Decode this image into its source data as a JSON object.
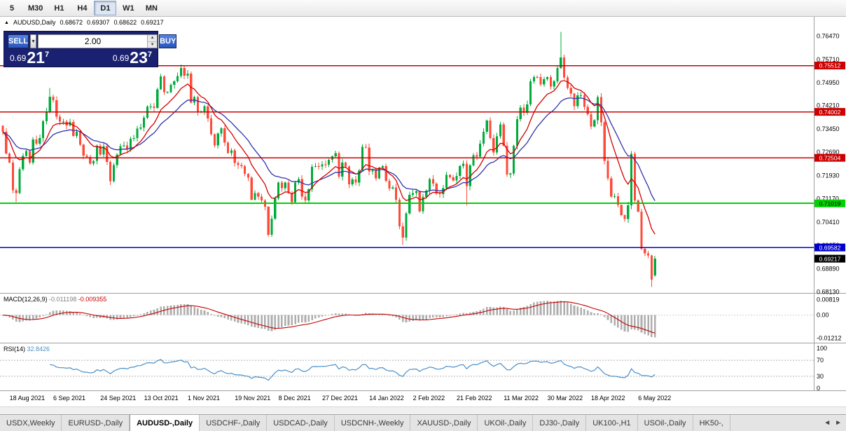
{
  "toolbar": {
    "timeframes": [
      {
        "label": "5",
        "active": false
      },
      {
        "label": "M30",
        "active": false
      },
      {
        "label": "H1",
        "active": false
      },
      {
        "label": "H4",
        "active": false
      },
      {
        "label": "D1",
        "active": true
      },
      {
        "label": "W1",
        "active": false
      },
      {
        "label": "MN",
        "active": false
      }
    ]
  },
  "ohlc_header": {
    "marker": "▲",
    "title": "AUDUSD,Daily",
    "open": "0.68672",
    "high": "0.69307",
    "low": "0.68622",
    "close": "0.69217"
  },
  "trade_panel": {
    "sell_label": "SELL",
    "buy_label": "BUY",
    "volume": "2.00",
    "dropdown_icon": "▼",
    "spinner_up": "▲",
    "spinner_down": "▼",
    "sell_price": {
      "prefix": "0.69",
      "big": "21",
      "sup": "7"
    },
    "buy_price": {
      "prefix": "0.69",
      "big": "23",
      "sup": "7"
    }
  },
  "chart_data": {
    "type": "candlestick",
    "symbol": "AUDUSD",
    "timeframe": "Daily",
    "y_range": {
      "top": 0.771,
      "bottom": 0.681
    },
    "price_axis_labels": [
      "0.76470",
      "0.75710",
      "0.74950",
      "0.74210",
      "0.73450",
      "0.72690",
      "0.71930",
      "0.71170",
      "0.70410",
      "0.69650",
      "0.68890",
      "0.68130"
    ],
    "hlines": [
      {
        "price": 0.75512,
        "label": "0.75512",
        "color": "#CC0000",
        "text_color": "#FFFFFF",
        "width": 1.5
      },
      {
        "price": 0.74002,
        "label": "0.74002",
        "color": "#CC0000",
        "text_color": "#FFFFFF",
        "width": 1.5
      },
      {
        "price": 0.72504,
        "label": "0.72504",
        "color": "#CC0000",
        "text_color": "#FFFFFF",
        "width": 1.5
      },
      {
        "price": 0.71019,
        "label": "0.71019",
        "color": "#00D200",
        "text_color": "#000000",
        "width": 2
      },
      {
        "price": 0.69582,
        "label": "0.69582",
        "color": "#0000CC",
        "text_color": "#FFFFFF",
        "width": 1.5
      }
    ],
    "current_price_tag": {
      "price": 0.69217,
      "label": "0.69217",
      "color": "#000000",
      "text_color": "#FFFFFF"
    },
    "first_open": 0.7355,
    "closes": [
      0.7335,
      0.7265,
      0.7235,
      0.7145,
      0.7135,
      0.7213,
      0.7257,
      0.7272,
      0.7235,
      0.731,
      0.7297,
      0.7315,
      0.737,
      0.74,
      0.745,
      0.7438,
      0.7385,
      0.7368,
      0.7369,
      0.7356,
      0.7367,
      0.7322,
      0.7335,
      0.7293,
      0.7258,
      0.7253,
      0.7232,
      0.7241,
      0.729,
      0.7261,
      0.7288,
      0.7237,
      0.7174,
      0.7227,
      0.7261,
      0.7288,
      0.7291,
      0.7277,
      0.7312,
      0.7315,
      0.7346,
      0.7349,
      0.7381,
      0.7418,
      0.7418,
      0.7413,
      0.7474,
      0.7516,
      0.7465,
      0.7465,
      0.7488,
      0.75,
      0.7517,
      0.7543,
      0.7518,
      0.7525,
      0.743,
      0.7448,
      0.7399,
      0.7401,
      0.7419,
      0.7379,
      0.7327,
      0.7291,
      0.733,
      0.7347,
      0.73,
      0.7266,
      0.7275,
      0.7234,
      0.7227,
      0.7224,
      0.7198,
      0.7186,
      0.7114,
      0.7136,
      0.7124,
      0.7112,
      0.7091,
      0.7,
      0.7052,
      0.7118,
      0.717,
      0.7152,
      0.717,
      0.7135,
      0.7106,
      0.717,
      0.7181,
      0.7124,
      0.7112,
      0.7148,
      0.7221,
      0.7224,
      0.7222,
      0.7229,
      0.7228,
      0.7244,
      0.7255,
      0.7266,
      0.7189,
      0.7235,
      0.7222,
      0.7164,
      0.718,
      0.717,
      0.7209,
      0.7286,
      0.7284,
      0.7206,
      0.7211,
      0.7183,
      0.7219,
      0.7224,
      0.7175,
      0.715,
      0.7154,
      0.7114,
      0.7027,
      0.6991,
      0.7069,
      0.713,
      0.7135,
      0.7142,
      0.7076,
      0.7123,
      0.7143,
      0.7181,
      0.7166,
      0.7134,
      0.7132,
      0.7151,
      0.7195,
      0.7187,
      0.7177,
      0.7192,
      0.7224,
      0.7231,
      0.7158,
      0.7226,
      0.7259,
      0.7254,
      0.7297,
      0.7335,
      0.7372,
      0.7315,
      0.7268,
      0.732,
      0.7359,
      0.729,
      0.7196,
      0.7199,
      0.729,
      0.7377,
      0.7414,
      0.7397,
      0.7425,
      0.75,
      0.7514,
      0.7513,
      0.749,
      0.7507,
      0.7513,
      0.7483,
      0.75,
      0.7543,
      0.7577,
      0.7512,
      0.7478,
      0.746,
      0.7419,
      0.7454,
      0.7454,
      0.7417,
      0.7392,
      0.7352,
      0.7373,
      0.7448,
      0.7366,
      0.7241,
      0.7183,
      0.7124,
      0.7125,
      0.7097,
      0.7063,
      0.7051,
      0.7095,
      0.7263,
      0.7112,
      0.7075,
      0.6954,
      0.6939,
      0.6932,
      0.6853,
      0.69217
    ],
    "wick_overrides": {
      "open": {
        "194": 0.68672
      },
      "high": {
        "14": 0.7478,
        "53": 0.7555,
        "166": 0.7661,
        "194": 0.69307
      },
      "low": {
        "4": 0.7106,
        "79": 0.6993,
        "119": 0.6966,
        "138": 0.7095,
        "193": 0.6829,
        "194": 0.68622
      }
    },
    "x_labels": [
      {
        "text": "18 Aug 2021",
        "index": 2
      },
      {
        "text": "6 Sep 2021",
        "index": 15
      },
      {
        "text": "24 Sep 2021",
        "index": 29
      },
      {
        "text": "13 Oct 2021",
        "index": 42
      },
      {
        "text": "1 Nov 2021",
        "index": 55
      },
      {
        "text": "19 Nov 2021",
        "index": 69
      },
      {
        "text": "8 Dec 2021",
        "index": 82
      },
      {
        "text": "27 Dec 2021",
        "index": 95
      },
      {
        "text": "14 Jan 2022",
        "index": 109
      },
      {
        "text": "2 Feb 2022",
        "index": 122
      },
      {
        "text": "21 Feb 2022",
        "index": 135
      },
      {
        "text": "11 Mar 2022",
        "index": 149
      },
      {
        "text": "30 Mar 2022",
        "index": 162
      },
      {
        "text": "18 Apr 2022",
        "index": 175
      },
      {
        "text": "6 May 2022",
        "index": 189
      }
    ],
    "ma_fast_period": 10,
    "ma_slow_period": 21,
    "indicators": {
      "macd": {
        "header": "MACD(12,26,9)",
        "value_main": "-0.011198",
        "value_signal": "-0.009355",
        "fast": 12,
        "slow": 26,
        "signal": 9,
        "axis_labels": [
          {
            "text": "0.00819",
            "value": 0.00819
          },
          {
            "text": "0.00",
            "value": 0
          },
          {
            "text": "-0.01212",
            "value": -0.01212
          }
        ],
        "range": {
          "max": 0.0095,
          "min": -0.0135
        }
      },
      "rsi": {
        "header": "RSI(14)",
        "value": "32.8426",
        "period": 14,
        "levels": [
          70,
          30
        ],
        "axis_labels": [
          {
            "text": "100",
            "value": 100
          },
          {
            "text": "70",
            "value": 70
          },
          {
            "text": "30",
            "value": 30
          },
          {
            "text": "0",
            "value": 0
          }
        ]
      }
    }
  },
  "tabs": {
    "scroll_left": "◄",
    "scroll_right": "►",
    "items": [
      {
        "label": "USDX,Weekly",
        "active": false
      },
      {
        "label": "EURUSD-,Daily",
        "active": false
      },
      {
        "label": "AUDUSD-,Daily",
        "active": true
      },
      {
        "label": "USDCHF-,Daily",
        "active": false
      },
      {
        "label": "USDCAD-,Daily",
        "active": false
      },
      {
        "label": "USDCNH-,Weekly",
        "active": false
      },
      {
        "label": "XAUUSD-,Daily",
        "active": false
      },
      {
        "label": "UKOil-,Daily",
        "active": false
      },
      {
        "label": "DJ30-,Daily",
        "active": false
      },
      {
        "label": "UK100-,H1",
        "active": false
      },
      {
        "label": "USOil-,Daily",
        "active": false
      },
      {
        "label": "HK50-,",
        "active": false
      }
    ]
  },
  "colors": {
    "bull": "#00AB3C",
    "bear": "#FF4A3A",
    "ma_fast": "#D40000",
    "ma_slow": "#3333AA",
    "macd_bar": "#ADADAD",
    "macd_signal": "#C40000",
    "rsi_line": "#4A8FC7",
    "axis_text": "#000000",
    "divider": "#9E9E9E",
    "level_dash": "#B0B0B0"
  }
}
